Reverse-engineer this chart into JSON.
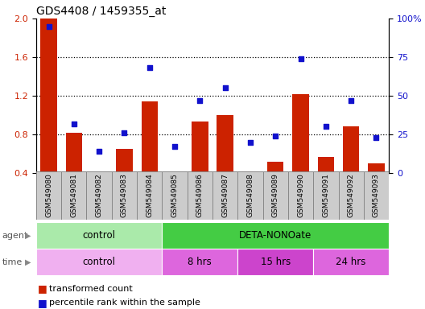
{
  "title": "GDS4408 / 1459355_at",
  "samples": [
    "GSM549080",
    "GSM549081",
    "GSM549082",
    "GSM549083",
    "GSM549084",
    "GSM549085",
    "GSM549086",
    "GSM549087",
    "GSM549088",
    "GSM549089",
    "GSM549090",
    "GSM549091",
    "GSM549092",
    "GSM549093"
  ],
  "bar_values": [
    2.0,
    0.82,
    0.41,
    0.65,
    1.14,
    0.41,
    0.93,
    1.0,
    0.42,
    0.52,
    1.22,
    0.57,
    0.88,
    0.5
  ],
  "scatter_values": [
    95,
    32,
    14,
    26,
    68,
    17,
    47,
    55,
    20,
    24,
    74,
    30,
    47,
    23
  ],
  "ylim_left": [
    0.4,
    2.0
  ],
  "ylim_right": [
    0,
    100
  ],
  "yticks_left": [
    0.4,
    0.8,
    1.2,
    1.6,
    2.0
  ],
  "yticks_right": [
    0,
    25,
    50,
    75,
    100
  ],
  "ytick_right_labels": [
    "0",
    "25",
    "50",
    "75",
    "100%"
  ],
  "bar_color": "#cc2200",
  "scatter_color": "#1111cc",
  "cell_bg": "#cccccc",
  "cell_edge": "#888888",
  "agent_groups": [
    {
      "label": "control",
      "start": 0,
      "end": 4,
      "color": "#aaeaaa"
    },
    {
      "label": "DETA-NONOate",
      "start": 5,
      "end": 13,
      "color": "#44cc44"
    }
  ],
  "time_groups": [
    {
      "label": "control",
      "start": 0,
      "end": 4,
      "color": "#f0b0f0"
    },
    {
      "label": "8 hrs",
      "start": 5,
      "end": 7,
      "color": "#dd66dd"
    },
    {
      "label": "15 hrs",
      "start": 8,
      "end": 10,
      "color": "#cc44cc"
    },
    {
      "label": "24 hrs",
      "start": 11,
      "end": 13,
      "color": "#dd66dd"
    }
  ],
  "legend_bar_label": "transformed count",
  "legend_scatter_label": "percentile rank within the sample",
  "label_color_agent": "#888888",
  "label_color_time": "#888888"
}
